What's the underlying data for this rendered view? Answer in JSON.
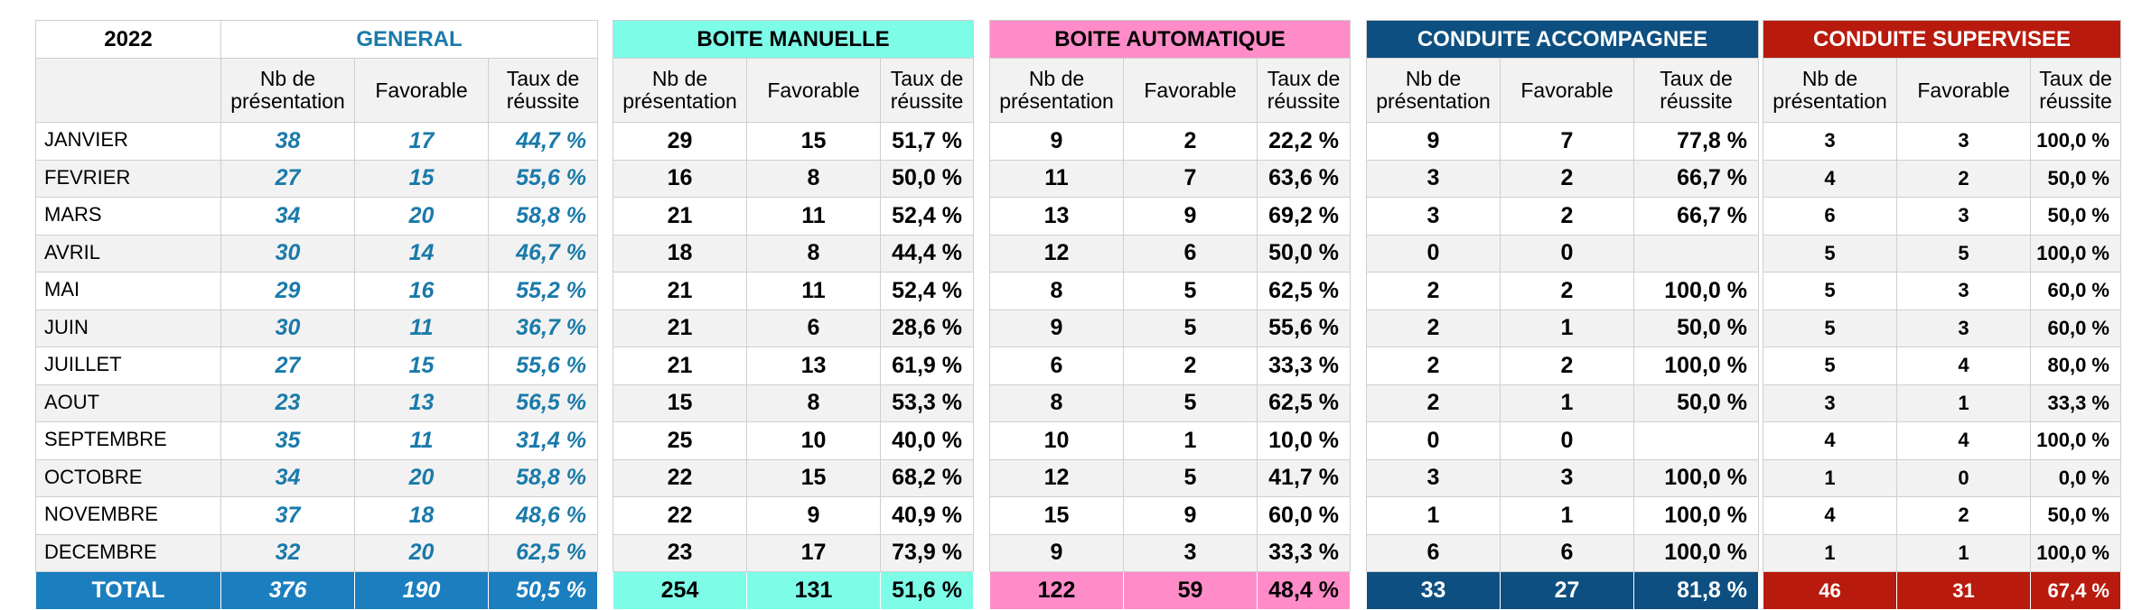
{
  "year": "2022",
  "months": [
    "JANVIER",
    "FEVRIER",
    "MARS",
    "AVRIL",
    "MAI",
    "JUIN",
    "JUILLET",
    "AOUT",
    "SEPTEMBRE",
    "OCTOBRE",
    "NOVEMBRE",
    "DECEMBRE"
  ],
  "total_label": "TOTAL",
  "columns": {
    "nb_line1": "Nb de",
    "nb_line2": "présentation",
    "favorable": "Favorable",
    "taux_line1": "Taux de",
    "taux_line2": "réussite"
  },
  "colors": {
    "general_title": "#1a7aaa",
    "general_total_bg": "#1b7fbf",
    "manuelle_bg": "#7dfde8",
    "automatique_bg": "#ff8cc8",
    "accompagnee_bg": "#0d4f80",
    "supervisee_bg": "#b81b0d"
  },
  "sections": {
    "general": {
      "title": "GENERAL",
      "rows": [
        [
          "38",
          "17",
          "44,7 %"
        ],
        [
          "27",
          "15",
          "55,6 %"
        ],
        [
          "34",
          "20",
          "58,8 %"
        ],
        [
          "30",
          "14",
          "46,7 %"
        ],
        [
          "29",
          "16",
          "55,2 %"
        ],
        [
          "30",
          "11",
          "36,7 %"
        ],
        [
          "27",
          "15",
          "55,6 %"
        ],
        [
          "23",
          "13",
          "56,5 %"
        ],
        [
          "35",
          "11",
          "31,4 %"
        ],
        [
          "34",
          "20",
          "58,8 %"
        ],
        [
          "37",
          "18",
          "48,6 %"
        ],
        [
          "32",
          "20",
          "62,5 %"
        ]
      ],
      "total": [
        "376",
        "190",
        "50,5 %"
      ]
    },
    "manuelle": {
      "title": "BOITE MANUELLE",
      "rows": [
        [
          "29",
          "15",
          "51,7 %"
        ],
        [
          "16",
          "8",
          "50,0 %"
        ],
        [
          "21",
          "11",
          "52,4 %"
        ],
        [
          "18",
          "8",
          "44,4 %"
        ],
        [
          "21",
          "11",
          "52,4 %"
        ],
        [
          "21",
          "6",
          "28,6 %"
        ],
        [
          "21",
          "13",
          "61,9 %"
        ],
        [
          "15",
          "8",
          "53,3 %"
        ],
        [
          "25",
          "10",
          "40,0 %"
        ],
        [
          "22",
          "15",
          "68,2 %"
        ],
        [
          "22",
          "9",
          "40,9 %"
        ],
        [
          "23",
          "17",
          "73,9 %"
        ]
      ],
      "total": [
        "254",
        "131",
        "51,6 %"
      ]
    },
    "automatique": {
      "title": "BOITE AUTOMATIQUE",
      "rows": [
        [
          "9",
          "2",
          "22,2 %"
        ],
        [
          "11",
          "7",
          "63,6 %"
        ],
        [
          "13",
          "9",
          "69,2 %"
        ],
        [
          "12",
          "6",
          "50,0 %"
        ],
        [
          "8",
          "5",
          "62,5 %"
        ],
        [
          "9",
          "5",
          "55,6 %"
        ],
        [
          "6",
          "2",
          "33,3 %"
        ],
        [
          "8",
          "5",
          "62,5 %"
        ],
        [
          "10",
          "1",
          "10,0 %"
        ],
        [
          "12",
          "5",
          "41,7 %"
        ],
        [
          "15",
          "9",
          "60,0 %"
        ],
        [
          "9",
          "3",
          "33,3 %"
        ]
      ],
      "total": [
        "122",
        "59",
        "48,4 %"
      ]
    },
    "accompagnee": {
      "title": "CONDUITE ACCOMPAGNEE",
      "rows": [
        [
          "9",
          "7",
          "77,8 %"
        ],
        [
          "3",
          "2",
          "66,7 %"
        ],
        [
          "3",
          "2",
          "66,7 %"
        ],
        [
          "0",
          "0",
          ""
        ],
        [
          "2",
          "2",
          "100,0 %"
        ],
        [
          "2",
          "1",
          "50,0 %"
        ],
        [
          "2",
          "2",
          "100,0 %"
        ],
        [
          "2",
          "1",
          "50,0 %"
        ],
        [
          "0",
          "0",
          ""
        ],
        [
          "3",
          "3",
          "100,0 %"
        ],
        [
          "1",
          "1",
          "100,0 %"
        ],
        [
          "6",
          "6",
          "100,0 %"
        ]
      ],
      "total": [
        "33",
        "27",
        "81,8 %"
      ]
    },
    "supervisee": {
      "title": "CONDUITE SUPERVISEE",
      "rows": [
        [
          "3",
          "3",
          "100,0 %"
        ],
        [
          "4",
          "2",
          "50,0 %"
        ],
        [
          "6",
          "3",
          "50,0 %"
        ],
        [
          "5",
          "5",
          "100,0 %"
        ],
        [
          "5",
          "3",
          "60,0 %"
        ],
        [
          "5",
          "3",
          "60,0 %"
        ],
        [
          "5",
          "4",
          "80,0 %"
        ],
        [
          "3",
          "1",
          "33,3 %"
        ],
        [
          "4",
          "4",
          "100,0 %"
        ],
        [
          "1",
          "0",
          "0,0 %"
        ],
        [
          "4",
          "2",
          "50,0 %"
        ],
        [
          "1",
          "1",
          "100,0 %"
        ]
      ],
      "total": [
        "46",
        "31",
        "67,4 %"
      ]
    }
  }
}
